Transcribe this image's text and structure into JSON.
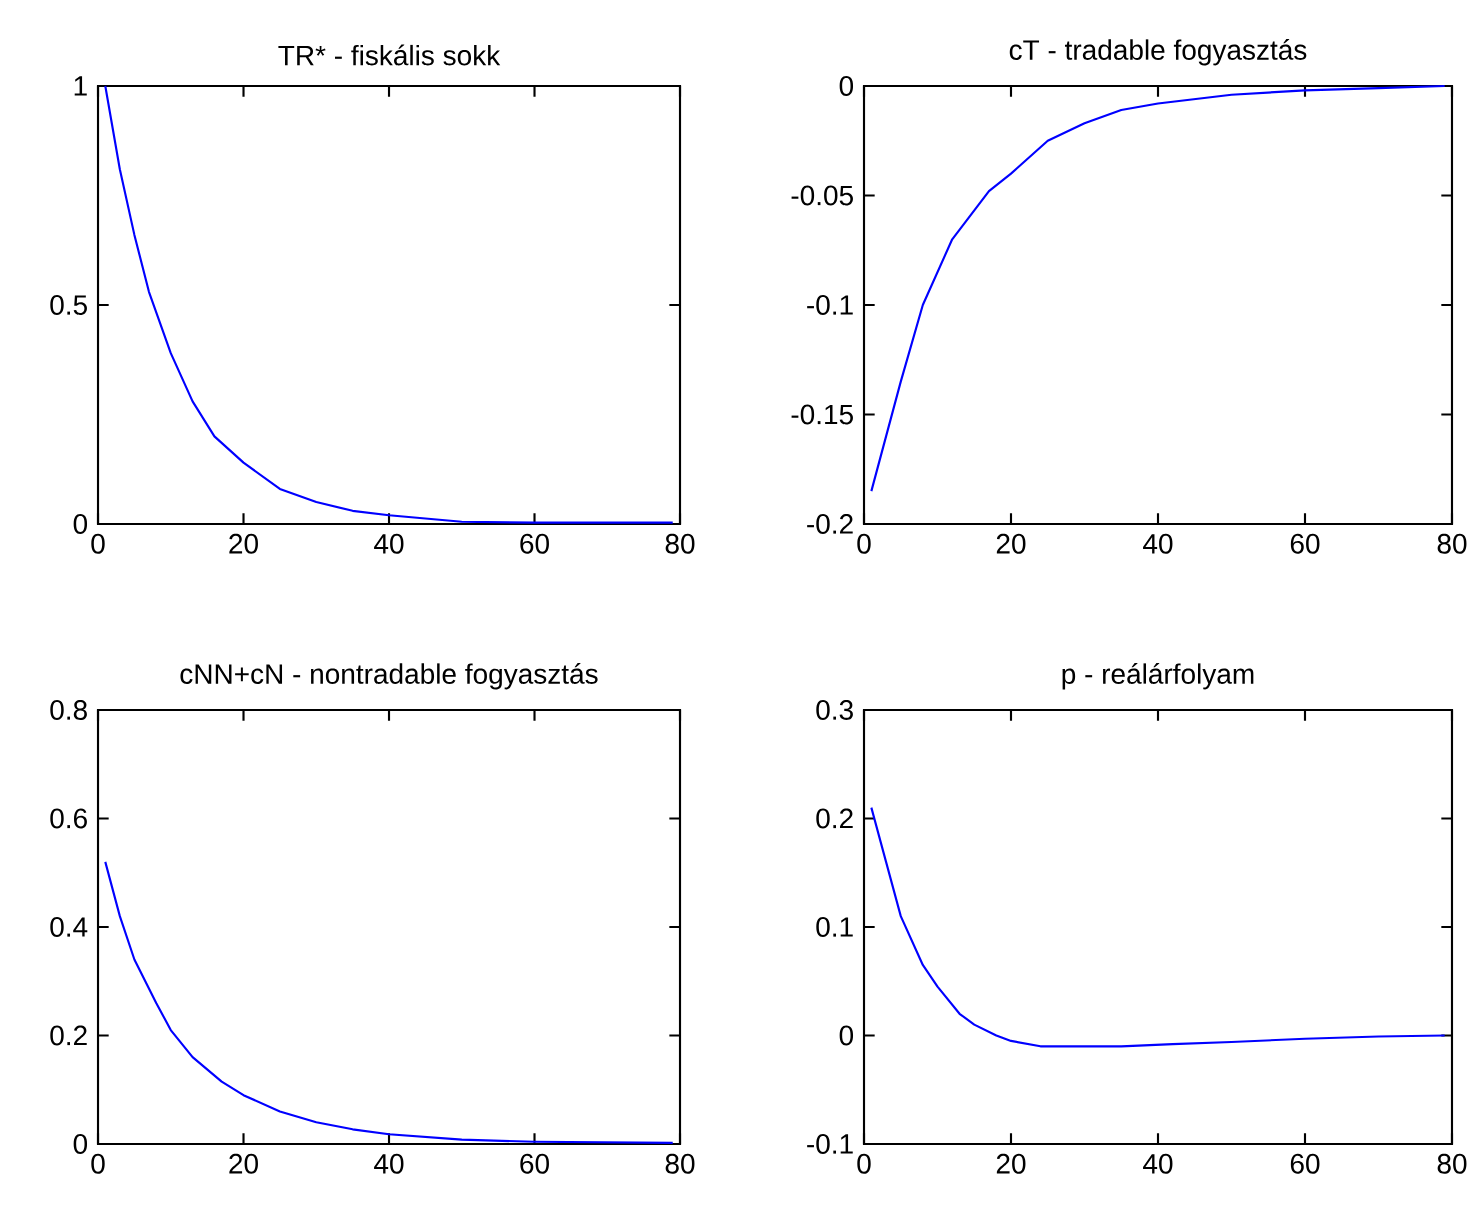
{
  "chart_data": [
    {
      "type": "line",
      "title": "TR* - fiskális sokk",
      "x": [
        1,
        3,
        5,
        7,
        10,
        13,
        16,
        20,
        25,
        30,
        35,
        40,
        50,
        60,
        79
      ],
      "xlim": [
        0,
        80
      ],
      "ylim": [
        0,
        1
      ],
      "xticks": [
        0,
        20,
        40,
        60,
        80
      ],
      "yticks": [
        0,
        0.5,
        1
      ],
      "series": [
        {
          "color": "#0000ff",
          "values": [
            1,
            0.81,
            0.66,
            0.53,
            0.39,
            0.28,
            0.2,
            0.14,
            0.08,
            0.05,
            0.03,
            0.02,
            0.005,
            0.003,
            0.003
          ]
        }
      ]
    },
    {
      "type": "line",
      "title": "cT - tradable fogyasztás",
      "x": [
        1,
        3,
        5,
        8,
        12,
        17,
        20,
        25,
        30,
        35,
        40,
        50,
        60,
        70,
        79
      ],
      "xlim": [
        0,
        80
      ],
      "ylim": [
        -0.2,
        0
      ],
      "xticks": [
        0,
        20,
        40,
        60,
        80
      ],
      "yticks": [
        -0.2,
        -0.15,
        -0.1,
        -0.05,
        0
      ],
      "series": [
        {
          "color": "#0000ff",
          "values": [
            -0.185,
            -0.16,
            -0.135,
            -0.1,
            -0.07,
            -0.048,
            -0.04,
            -0.025,
            -0.017,
            -0.011,
            -0.008,
            -0.004,
            -0.002,
            -0.001,
            0
          ]
        }
      ]
    },
    {
      "type": "line",
      "title": "cNN+cN - nontradable fogyasztás",
      "x": [
        1,
        3,
        5,
        8,
        10,
        13,
        17,
        20,
        25,
        30,
        35,
        40,
        50,
        60,
        79
      ],
      "xlim": [
        0,
        80
      ],
      "ylim": [
        0,
        0.8
      ],
      "xticks": [
        0,
        20,
        40,
        60,
        80
      ],
      "yticks": [
        0,
        0.2,
        0.4,
        0.6,
        0.8
      ],
      "series": [
        {
          "color": "#0000ff",
          "values": [
            0.52,
            0.42,
            0.34,
            0.26,
            0.21,
            0.16,
            0.115,
            0.09,
            0.06,
            0.04,
            0.027,
            0.018,
            0.008,
            0.004,
            0.002
          ]
        }
      ]
    },
    {
      "type": "line",
      "title": "p - reálárfolyam",
      "x": [
        1,
        3,
        5,
        8,
        10,
        13,
        15,
        18,
        20,
        24,
        30,
        35,
        42,
        50,
        60,
        70,
        79
      ],
      "xlim": [
        0,
        80
      ],
      "ylim": [
        -0.1,
        0.3
      ],
      "xticks": [
        0,
        20,
        40,
        60,
        80
      ],
      "yticks": [
        -0.1,
        0,
        0.1,
        0.2,
        0.3
      ],
      "series": [
        {
          "color": "#0000ff",
          "values": [
            0.21,
            0.16,
            0.11,
            0.065,
            0.045,
            0.02,
            0.01,
            0.0,
            -0.005,
            -0.01,
            -0.01,
            -0.01,
            -0.008,
            -0.006,
            -0.003,
            -0.001,
            0
          ]
        }
      ]
    }
  ]
}
